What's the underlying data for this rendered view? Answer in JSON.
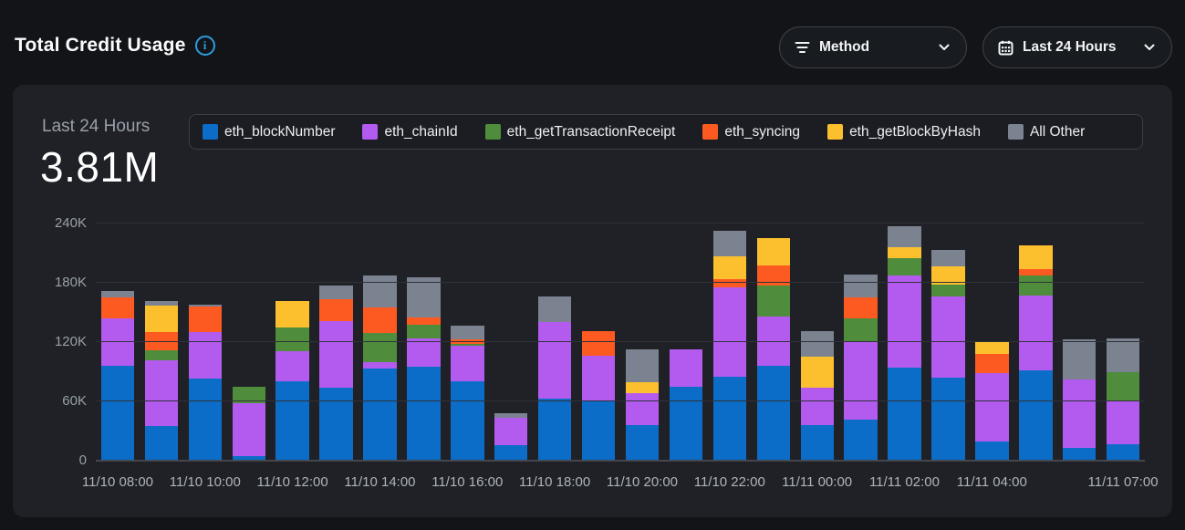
{
  "header": {
    "title": "Total Credit Usage",
    "info_glyph": "i"
  },
  "filters": {
    "method": {
      "label": "Method"
    },
    "range": {
      "label": "Last 24 Hours"
    }
  },
  "summary": {
    "period": "Last 24 Hours",
    "total": "3.81M"
  },
  "colors": {
    "accent_info": "#2b9ce0",
    "page_bg": "#121417",
    "card_bg": "#1f2127"
  },
  "chart_data": {
    "type": "bar",
    "stacked": true,
    "title": "Total Credit Usage",
    "unit": "K",
    "ylim": [
      0,
      240
    ],
    "y_ticks": [
      {
        "value": 0,
        "label": "0"
      },
      {
        "value": 60,
        "label": "60K"
      },
      {
        "value": 120,
        "label": "120K"
      },
      {
        "value": 180,
        "label": "180K"
      },
      {
        "value": 240,
        "label": "240K"
      }
    ],
    "grid": "horizontal",
    "legend_position": "top",
    "num_bars": 24,
    "x_ticks": [
      {
        "index": 0,
        "label": "11/10 08:00"
      },
      {
        "index": 2,
        "label": "11/10 10:00"
      },
      {
        "index": 4,
        "label": "11/10 12:00"
      },
      {
        "index": 6,
        "label": "11/10 14:00"
      },
      {
        "index": 8,
        "label": "11/10 16:00"
      },
      {
        "index": 10,
        "label": "11/10 18:00"
      },
      {
        "index": 12,
        "label": "11/10 20:00"
      },
      {
        "index": 14,
        "label": "11/10 22:00"
      },
      {
        "index": 16,
        "label": "11/11 00:00"
      },
      {
        "index": 18,
        "label": "11/11 02:00"
      },
      {
        "index": 20,
        "label": "11/11 04:00"
      },
      {
        "index": 23,
        "label": "11/11 07:00"
      }
    ],
    "series": [
      {
        "name": "eth_blockNumber",
        "color": "#0b6dc7",
        "values": [
          96,
          35,
          83,
          5,
          80,
          74,
          93,
          95,
          80,
          16,
          63,
          60,
          36,
          75,
          85,
          96,
          36,
          42,
          94,
          84,
          19,
          91,
          13,
          17
        ]
      },
      {
        "name": "eth_chainId",
        "color": "#b45bef",
        "values": [
          48,
          67,
          47,
          53,
          31,
          67,
          7,
          29,
          36,
          27,
          77,
          46,
          32,
          38,
          90,
          50,
          38,
          79,
          93,
          82,
          70,
          76,
          69,
          44
        ]
      },
      {
        "name": "eth_getTransactionReceipt",
        "color": "#4f8c3c",
        "values": [
          0,
          10,
          0,
          17,
          24,
          0,
          29,
          14,
          2,
          0,
          0,
          0,
          0,
          0,
          0,
          31,
          0,
          23,
          18,
          12,
          0,
          20,
          0,
          29
        ]
      },
      {
        "name": "eth_syncing",
        "color": "#fd5a22",
        "values": [
          21,
          18,
          26,
          0,
          0,
          22,
          26,
          7,
          5,
          0,
          0,
          25,
          0,
          0,
          9,
          21,
          0,
          21,
          0,
          0,
          19,
          7,
          0,
          0
        ]
      },
      {
        "name": "eth_getBlockByHash",
        "color": "#fcc02f",
        "values": [
          0,
          27,
          0,
          0,
          27,
          0,
          0,
          0,
          0,
          0,
          0,
          0,
          11,
          0,
          23,
          27,
          31,
          0,
          11,
          19,
          13,
          24,
          0,
          0
        ]
      },
      {
        "name": "All Other",
        "color": "#7b8290",
        "values": [
          7,
          5,
          2,
          0,
          0,
          14,
          32,
          41,
          14,
          5,
          26,
          0,
          34,
          0,
          26,
          0,
          26,
          23,
          21,
          16,
          0,
          0,
          41,
          34
        ]
      }
    ]
  }
}
